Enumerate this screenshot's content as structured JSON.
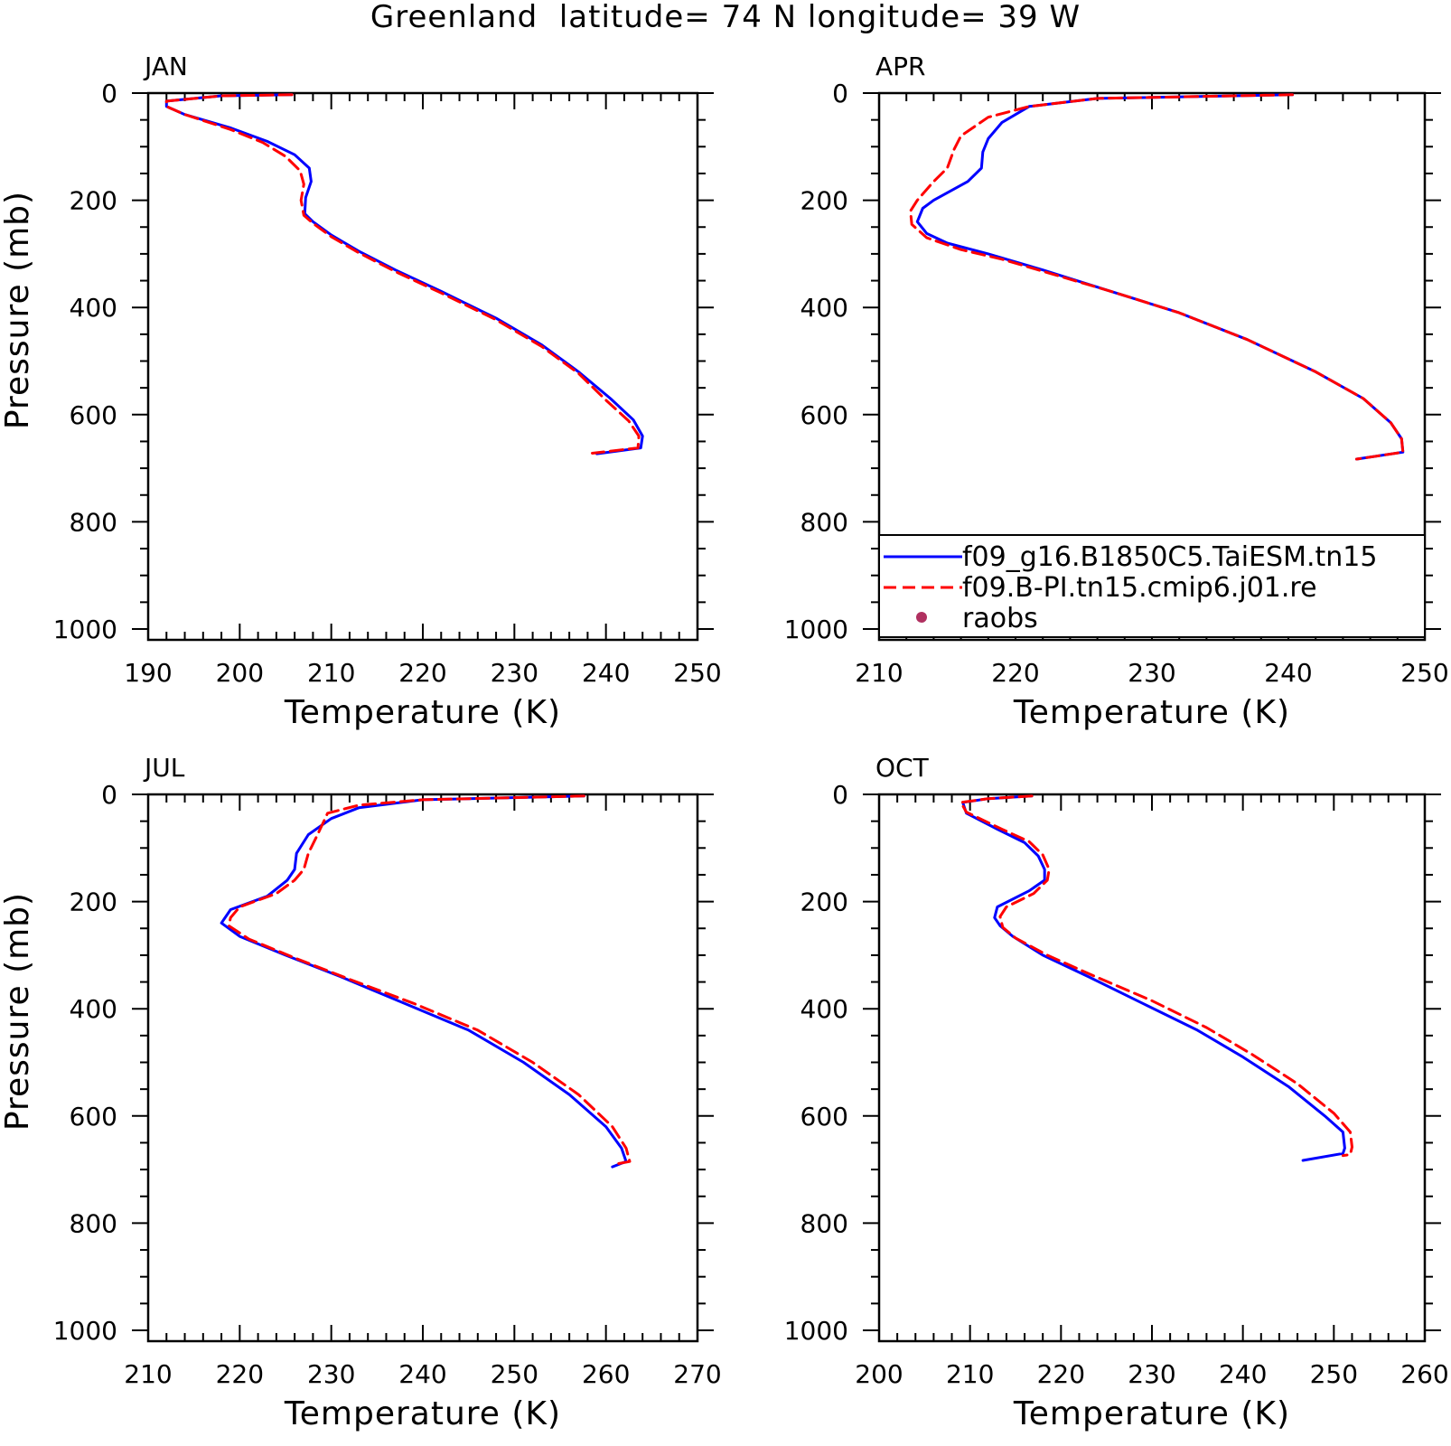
{
  "figure": {
    "title": "Greenland  latitude= 74 N longitude= 39 W"
  },
  "legend": {
    "placement": "lower portion of APR panel",
    "entries": [
      {
        "label": "f09_g16.B1850C5.TaiESM.tn15",
        "color": "#0000ff",
        "style": "solid"
      },
      {
        "label": "f09.B-PI.tn15.cmip6.j01.re",
        "color": "#ff0000",
        "style": "dashed"
      },
      {
        "label": "raobs",
        "color": "#b03060",
        "style": "dot"
      }
    ]
  },
  "chart_data": [
    {
      "type": "line",
      "panel_label": "JAN",
      "xlabel": "Temperature (K)",
      "ylabel": "Pressure (mb)",
      "xlim": [
        190,
        250
      ],
      "ylim": [
        1000,
        0
      ],
      "xticks": [
        190,
        200,
        210,
        220,
        230,
        240,
        250
      ],
      "yticks": [
        0,
        200,
        400,
        600,
        800,
        1000
      ],
      "show_ylabel": true,
      "series": [
        {
          "name": "f09_g16.B1850C5.TaiESM.tn15",
          "color": "#0000ff",
          "points": [
            [
              205.7,
              3
            ],
            [
              198,
              5
            ],
            [
              192,
              15
            ],
            [
              192,
              25
            ],
            [
              194,
              40
            ],
            [
              199,
              65
            ],
            [
              203,
              90
            ],
            [
              206,
              115
            ],
            [
              207.6,
              140
            ],
            [
              207.8,
              165
            ],
            [
              207.2,
              195
            ],
            [
              207.1,
              225
            ],
            [
              208,
              240
            ],
            [
              210,
              265
            ],
            [
              213,
              295
            ],
            [
              217,
              330
            ],
            [
              222,
              370
            ],
            [
              228,
              420
            ],
            [
              233,
              470
            ],
            [
              237,
              520
            ],
            [
              240.5,
              570
            ],
            [
              243,
              610
            ],
            [
              244,
              640
            ],
            [
              243.8,
              662
            ],
            [
              239,
              673
            ]
          ]
        },
        {
          "name": "f09.B-PI.tn15.cmip6.j01.re",
          "color": "#ff0000",
          "points": [
            [
              205.7,
              3
            ],
            [
              198,
              5
            ],
            [
              192,
              15
            ],
            [
              192,
              25
            ],
            [
              194,
              40
            ],
            [
              199,
              68
            ],
            [
              202.5,
              92
            ],
            [
              205,
              118
            ],
            [
              206.6,
              145
            ],
            [
              207,
              170
            ],
            [
              206.7,
              200
            ],
            [
              207,
              228
            ],
            [
              208,
              243
            ],
            [
              210,
              268
            ],
            [
              213,
              298
            ],
            [
              217,
              333
            ],
            [
              222,
              373
            ],
            [
              228,
              423
            ],
            [
              233,
              473
            ],
            [
              237,
              523
            ],
            [
              240,
              573
            ],
            [
              242.5,
              612
            ],
            [
              243.6,
              640
            ],
            [
              243.5,
              662
            ],
            [
              238.5,
              672
            ]
          ]
        }
      ]
    },
    {
      "type": "line",
      "panel_label": "APR",
      "xlabel": "Temperature (K)",
      "ylabel": "Pressure (mb)",
      "xlim": [
        210,
        250
      ],
      "ylim": [
        1000,
        0
      ],
      "xticks": [
        210,
        220,
        230,
        240,
        250
      ],
      "yticks": [
        0,
        200,
        400,
        600,
        800,
        1000
      ],
      "show_ylabel": false,
      "series": [
        {
          "name": "f09_g16.B1850C5.TaiESM.tn15",
          "color": "#0000ff",
          "points": [
            [
              240.3,
              3
            ],
            [
              226,
              10
            ],
            [
              221,
              25
            ],
            [
              219,
              55
            ],
            [
              218,
              85
            ],
            [
              217.6,
              110
            ],
            [
              217.5,
              140
            ],
            [
              216.5,
              165
            ],
            [
              214,
              200
            ],
            [
              213.2,
              215
            ],
            [
              212.8,
              240
            ],
            [
              213.5,
              262
            ],
            [
              215,
              280
            ],
            [
              218,
              300
            ],
            [
              222,
              330
            ],
            [
              227,
              370
            ],
            [
              232,
              410
            ],
            [
              237,
              460
            ],
            [
              242,
              520
            ],
            [
              245.5,
              570
            ],
            [
              247.5,
              615
            ],
            [
              248.3,
              645
            ],
            [
              248.4,
              670
            ],
            [
              245,
              683
            ]
          ]
        },
        {
          "name": "f09.B-PI.tn15.cmip6.j01.re",
          "color": "#ff0000",
          "points": [
            [
              240.3,
              3
            ],
            [
              226,
              10
            ],
            [
              221,
              25
            ],
            [
              218,
              45
            ],
            [
              216,
              80
            ],
            [
              215.5,
              105
            ],
            [
              215,
              140
            ],
            [
              214,
              165
            ],
            [
              212.8,
              200
            ],
            [
              212.3,
              220
            ],
            [
              212.4,
              245
            ],
            [
              213.5,
              270
            ],
            [
              216,
              292
            ],
            [
              219,
              310
            ],
            [
              223,
              340
            ],
            [
              227,
              370
            ],
            [
              232,
              410
            ],
            [
              237,
              460
            ],
            [
              242,
              520
            ],
            [
              245.5,
              570
            ],
            [
              247.5,
              615
            ],
            [
              248.3,
              645
            ],
            [
              248.4,
              670
            ],
            [
              245,
              683
            ]
          ]
        }
      ]
    },
    {
      "type": "line",
      "panel_label": "JUL",
      "xlabel": "Temperature (K)",
      "ylabel": "Pressure (mb)",
      "xlim": [
        210,
        270
      ],
      "ylim": [
        1000,
        0
      ],
      "xticks": [
        210,
        220,
        230,
        240,
        250,
        260,
        270
      ],
      "yticks": [
        0,
        200,
        400,
        600,
        800,
        1000
      ],
      "show_ylabel": true,
      "series": [
        {
          "name": "f09_g16.B1850C5.TaiESM.tn15",
          "color": "#0000ff",
          "points": [
            [
              257.6,
              3
            ],
            [
              240,
              10
            ],
            [
              233,
              25
            ],
            [
              230,
              45
            ],
            [
              227.5,
              75
            ],
            [
              226.2,
              110
            ],
            [
              226,
              140
            ],
            [
              225.2,
              160
            ],
            [
              223,
              190
            ],
            [
              219,
              215
            ],
            [
              218,
              240
            ],
            [
              220,
              265
            ],
            [
              225,
              300
            ],
            [
              231,
              340
            ],
            [
              238,
              390
            ],
            [
              245,
              440
            ],
            [
              251,
              500
            ],
            [
              256,
              560
            ],
            [
              260,
              620
            ],
            [
              261.7,
              660
            ],
            [
              262.2,
              685
            ],
            [
              260.7,
              695
            ]
          ]
        },
        {
          "name": "f09.B-PI.tn15.cmip6.j01.re",
          "color": "#ff0000",
          "points": [
            [
              257.6,
              3
            ],
            [
              240,
              10
            ],
            [
              233,
              20
            ],
            [
              229.6,
              35
            ],
            [
              228.5,
              75
            ],
            [
              227.5,
              110
            ],
            [
              227,
              140
            ],
            [
              226,
              160
            ],
            [
              224,
              185
            ],
            [
              220,
              210
            ],
            [
              219,
              230
            ],
            [
              218.8,
              245
            ],
            [
              221,
              270
            ],
            [
              226,
              305
            ],
            [
              232,
              345
            ],
            [
              239,
              390
            ],
            [
              246,
              440
            ],
            [
              252,
              500
            ],
            [
              257,
              560
            ],
            [
              260.7,
              620
            ],
            [
              262.2,
              660
            ],
            [
              262.6,
              685
            ],
            [
              261,
              690
            ]
          ]
        }
      ]
    },
    {
      "type": "line",
      "panel_label": "OCT",
      "xlabel": "Temperature (K)",
      "ylabel": "Pressure (mb)",
      "xlim": [
        200,
        260
      ],
      "ylim": [
        1000,
        0
      ],
      "xticks": [
        200,
        210,
        220,
        230,
        240,
        250,
        260
      ],
      "yticks": [
        0,
        200,
        400,
        600,
        800,
        1000
      ],
      "show_ylabel": false,
      "series": [
        {
          "name": "f09_g16.B1850C5.TaiESM.tn15",
          "color": "#0000ff",
          "points": [
            [
              216.8,
              3
            ],
            [
              212,
              8
            ],
            [
              209.2,
              15
            ],
            [
              209.6,
              35
            ],
            [
              213,
              65
            ],
            [
              216,
              90
            ],
            [
              217.5,
              115
            ],
            [
              218.2,
              140
            ],
            [
              218.2,
              160
            ],
            [
              216.5,
              180
            ],
            [
              213,
              210
            ],
            [
              212.7,
              230
            ],
            [
              213.3,
              245
            ],
            [
              214.7,
              265
            ],
            [
              218,
              300
            ],
            [
              223,
              340
            ],
            [
              229,
              390
            ],
            [
              235,
              440
            ],
            [
              240,
              490
            ],
            [
              245,
              545
            ],
            [
              249,
              600
            ],
            [
              251,
              630
            ],
            [
              251.2,
              660
            ],
            [
              251,
              670
            ],
            [
              246.6,
              683
            ]
          ]
        },
        {
          "name": "f09.B-PI.tn15.cmip6.j01.re",
          "color": "#ff0000",
          "points": [
            [
              216.8,
              3
            ],
            [
              212,
              8
            ],
            [
              209,
              15
            ],
            [
              209.6,
              33
            ],
            [
              213.5,
              65
            ],
            [
              216.5,
              88
            ],
            [
              218,
              113
            ],
            [
              218.7,
              140
            ],
            [
              218.5,
              160
            ],
            [
              217,
              185
            ],
            [
              214,
              210
            ],
            [
              213.3,
              228
            ],
            [
              213.6,
              248
            ],
            [
              215,
              268
            ],
            [
              218.5,
              300
            ],
            [
              223.5,
              338
            ],
            [
              230,
              385
            ],
            [
              236,
              435
            ],
            [
              241,
              485
            ],
            [
              246,
              540
            ],
            [
              250,
              595
            ],
            [
              251.8,
              630
            ],
            [
              252,
              658
            ],
            [
              251.8,
              672
            ],
            [
              251,
              674
            ]
          ]
        }
      ]
    }
  ]
}
